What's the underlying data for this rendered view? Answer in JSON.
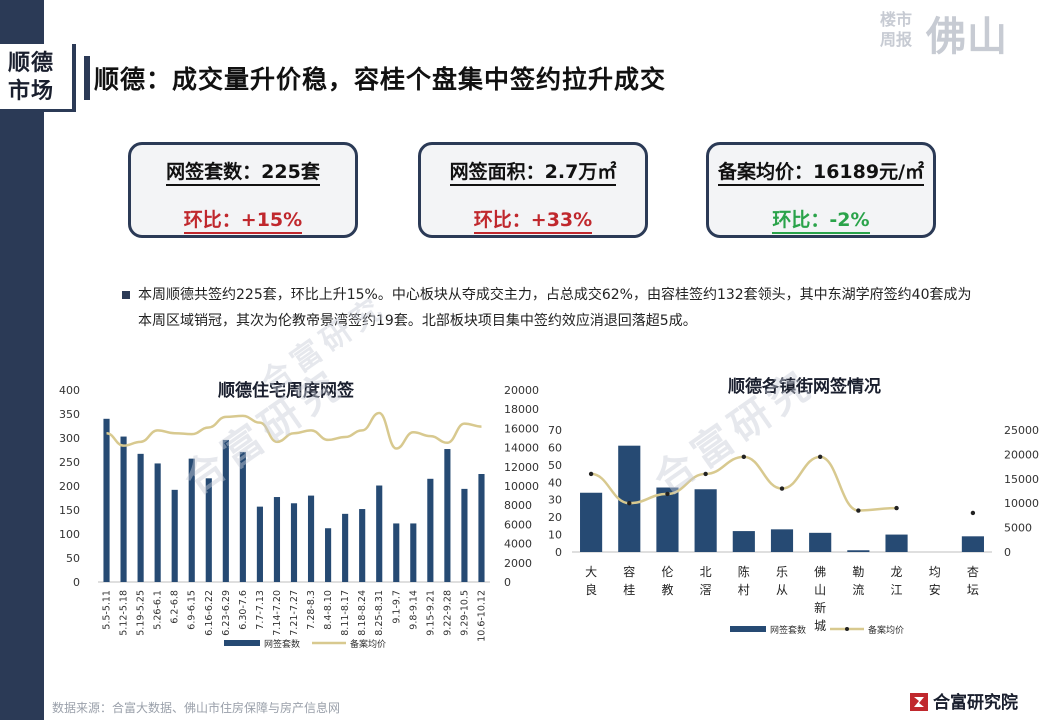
{
  "section_tag": {
    "line1": "顺德",
    "line2": "市场"
  },
  "page_title": "顺德：成交量升价稳，容桂个盘集中签约拉升成交",
  "brand": {
    "small_line1": "楼市",
    "small_line2": "周报",
    "big": "佛山"
  },
  "kpis": [
    {
      "label": "网签套数：225套",
      "change": "环比：+15%",
      "change_color": "#c0282d"
    },
    {
      "label": "网签面积：2.7万㎡",
      "change": "环比：+33%",
      "change_color": "#c0282d"
    },
    {
      "label": "备案均价：16189元/㎡",
      "change": "环比：-2%",
      "change_color": "#2aa34a"
    }
  ],
  "summary": "本周顺德共签约225套，环比上升15%。中心板块从夺成交主力，占总成交62%，由容桂签约132套领头，其中东湖学府签约40套成为本周区域销冠，其次为伦教帝景湾签约19套。北部板块项目集中签约效应消退回落超5成。",
  "watermark": "合富研究",
  "footer": {
    "source": "数据来源：合富大数据、佛山市住房保障与房产信息网",
    "brand": "合富研究院"
  },
  "colors": {
    "bar": "#264a73",
    "line": "#d8c98f",
    "accent": "#2b3a56"
  },
  "chart_data": [
    {
      "type": "bar",
      "title": "顺德住宅周度网签",
      "categories": [
        "5.5-5.11",
        "5.12-5.18",
        "5.19-5.25",
        "5.26-6.1",
        "6.2-6.8",
        "6.9-6.15",
        "6.16-6.22",
        "6.23-6.29",
        "6.30-7.6",
        "7.7-7.13",
        "7.14-7.20",
        "7.21-7.27",
        "7.28-8.3",
        "8.4-8.10",
        "8.11-8.17",
        "8.18-8.24",
        "8.25-8.31",
        "9.1-9.7",
        "9.8-9.14",
        "9.15-9.21",
        "9.22-9.28",
        "9.29-10.5",
        "10.6-10.12"
      ],
      "series": [
        {
          "name": "网签套数",
          "type": "bar",
          "axis": "left",
          "values": [
            340,
            303,
            267,
            247,
            192,
            257,
            216,
            296,
            271,
            157,
            177,
            164,
            180,
            112,
            142,
            152,
            201,
            122,
            122,
            215,
            277,
            194,
            225
          ]
        },
        {
          "name": "备案均价",
          "type": "line",
          "axis": "right",
          "values": [
            15500,
            14200,
            14600,
            15800,
            15500,
            15400,
            16100,
            17200,
            17300,
            16600,
            14600,
            15500,
            15800,
            14800,
            15100,
            15800,
            17600,
            13900,
            15600,
            15200,
            14500,
            16500,
            16189
          ]
        }
      ],
      "ylim_left": [
        0,
        400
      ],
      "yticks_left": [
        0,
        50,
        100,
        150,
        200,
        250,
        300,
        350,
        400
      ],
      "ylim_right": [
        0,
        20000
      ],
      "yticks_right": [
        0,
        2000,
        4000,
        6000,
        8000,
        10000,
        12000,
        14000,
        16000,
        18000,
        20000
      ],
      "legend": [
        "网签套数",
        "备案均价"
      ],
      "legend_position": "bottom"
    },
    {
      "type": "bar",
      "title": "顺德各镇街网签情况",
      "categories": [
        "大良",
        "容桂",
        "伦教",
        "北滘",
        "陈村",
        "乐从",
        "佛山新城",
        "勒流",
        "龙江",
        "均安",
        "杏坛"
      ],
      "series": [
        {
          "name": "网签套数",
          "type": "bar",
          "axis": "left",
          "values": [
            34,
            61,
            37,
            36,
            12,
            13,
            11,
            1,
            10,
            0,
            9
          ]
        },
        {
          "name": "备案均价",
          "type": "line",
          "axis": "right",
          "values": [
            16000,
            10000,
            11900,
            16000,
            19500,
            13000,
            19500,
            8500,
            9000,
            null,
            8000
          ]
        }
      ],
      "ylim_left": [
        0,
        70
      ],
      "yticks_left": [
        0,
        10,
        20,
        30,
        40,
        50,
        60,
        70
      ],
      "ylim_right": [
        0,
        25000
      ],
      "yticks_right": [
        0,
        5000,
        10000,
        15000,
        20000,
        25000
      ],
      "legend": [
        "网签套数",
        "备案均价"
      ],
      "legend_position": "bottom"
    }
  ]
}
